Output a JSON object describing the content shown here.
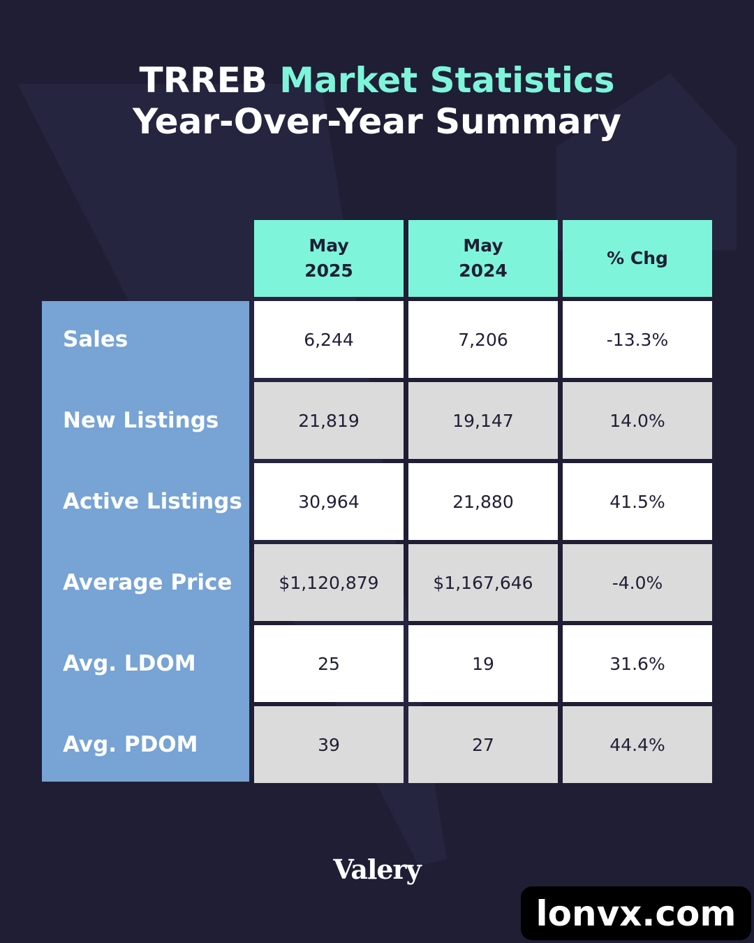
{
  "header": {
    "title_part1": "TRREB",
    "title_part2": "Market Statistics",
    "subtitle": "Year-Over-Year Summary"
  },
  "chart_data": {
    "type": "table",
    "columns": [
      {
        "line1": "May",
        "line2": "2025"
      },
      {
        "line1": "May",
        "line2": "2024"
      },
      {
        "line1": "% Chg",
        "line2": ""
      }
    ],
    "rows": [
      {
        "label": "Sales",
        "values": [
          "6,244",
          "7,206",
          "-13.3%"
        ]
      },
      {
        "label": "New Listings",
        "values": [
          "21,819",
          "19,147",
          "14.0%"
        ]
      },
      {
        "label": "Active Listings",
        "values": [
          "30,964",
          "21,880",
          "41.5%"
        ]
      },
      {
        "label": "Average Price",
        "values": [
          "$1,120,879",
          "$1,167,646",
          "-4.0%"
        ]
      },
      {
        "label": "Avg. LDOM",
        "values": [
          "25",
          "19",
          "31.6%"
        ]
      },
      {
        "label": "Avg. PDOM",
        "values": [
          "39",
          "27",
          "44.4%"
        ]
      }
    ],
    "colors": {
      "background": "#1f1e35",
      "header": "#7ef5da",
      "label_column": "#77a3d5",
      "row_light": "#ffffff",
      "row_dark": "#dcdbdb"
    }
  },
  "footer": {
    "brand": "Valery",
    "watermark": "lonvx.com"
  }
}
